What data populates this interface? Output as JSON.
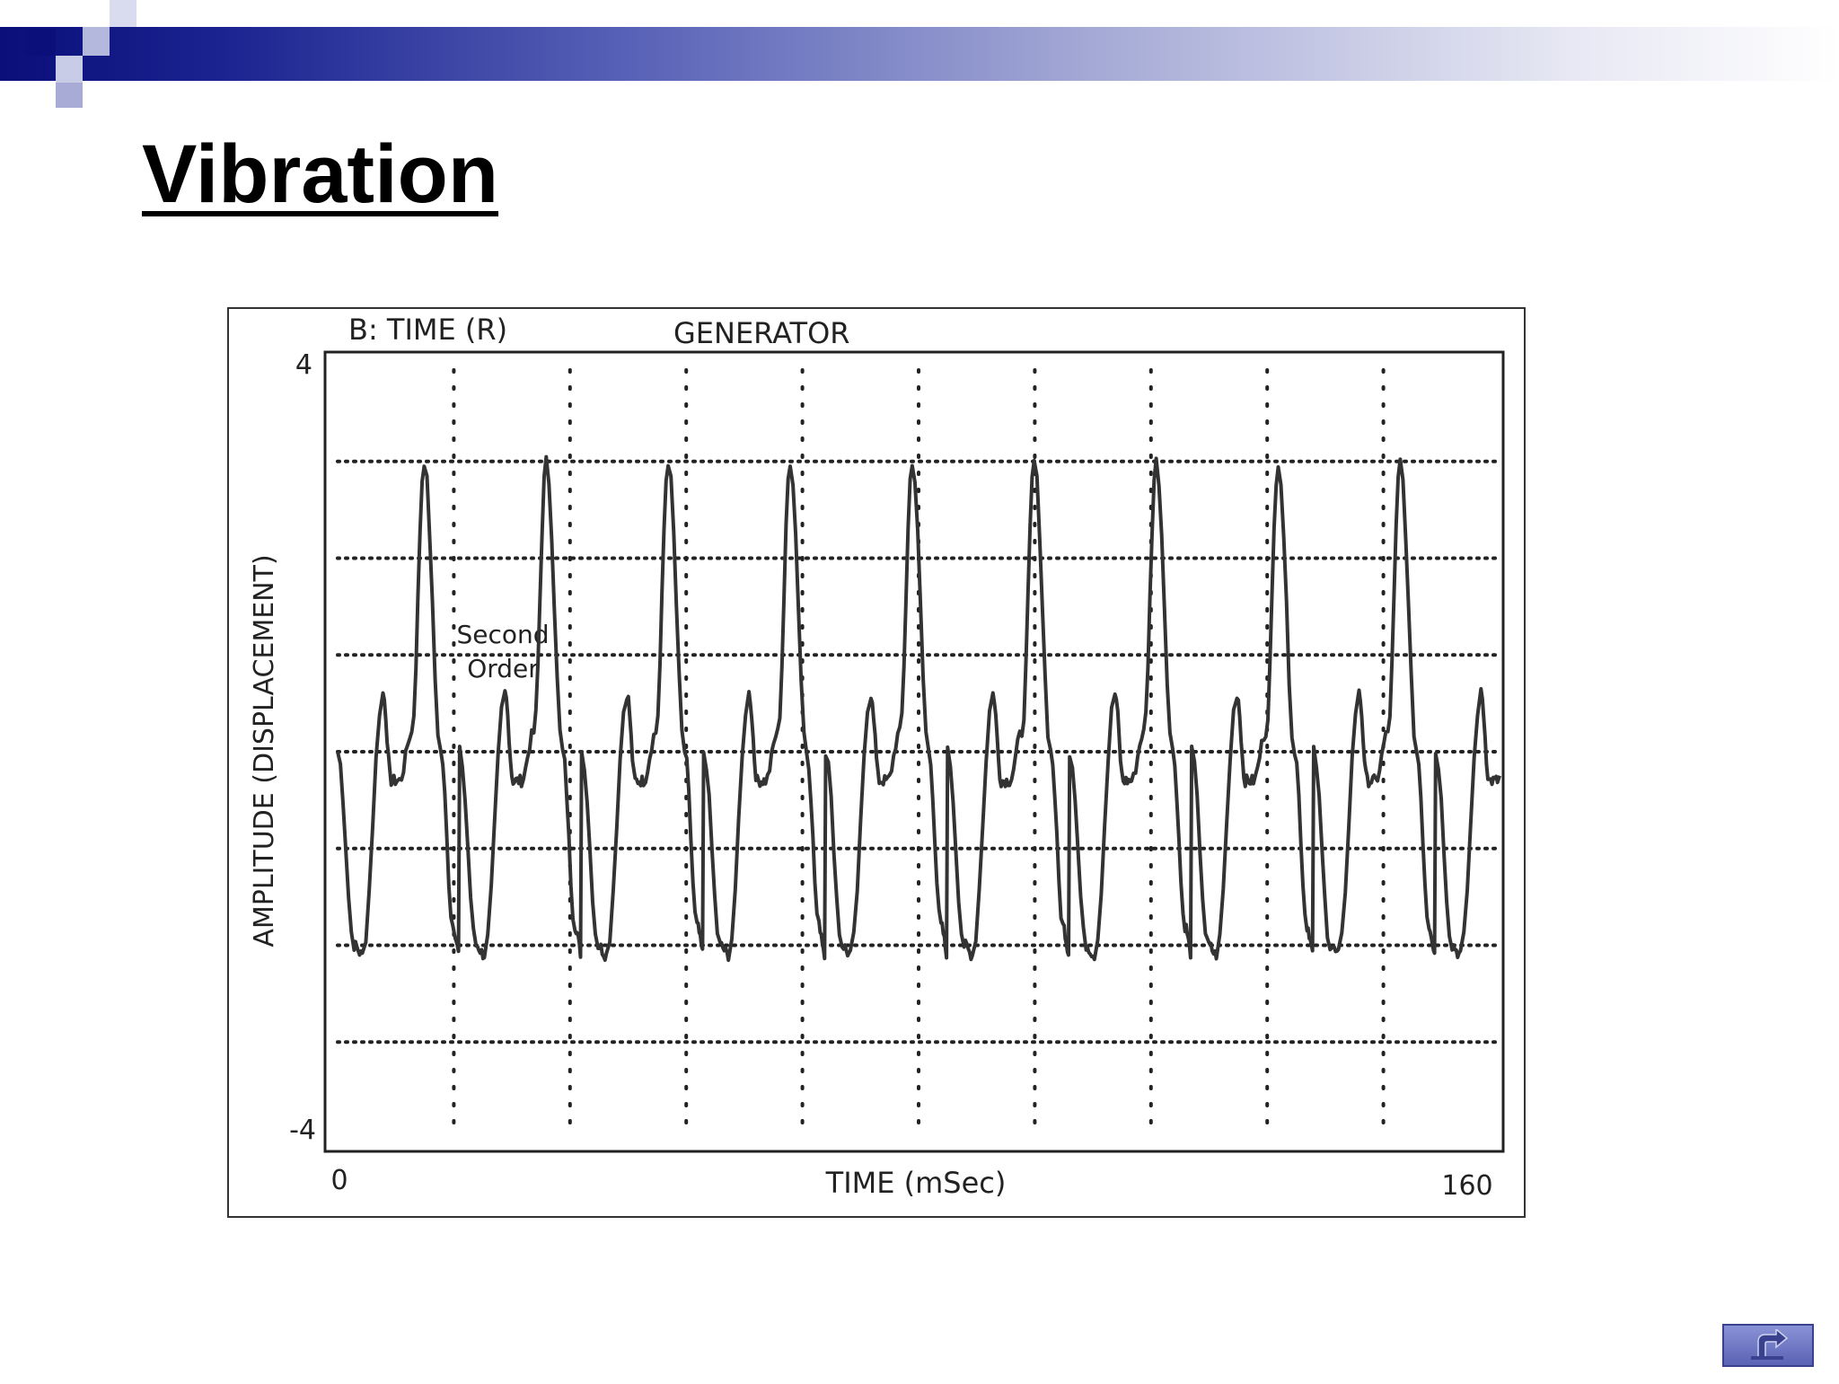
{
  "slide": {
    "title": "Vibration"
  },
  "colors": {
    "header_dark": "#0a0f7a",
    "header_mid": "#5a64b8",
    "trace": "#333333",
    "button": "#6f78c8"
  },
  "icons": {
    "back": "return-arrow-icon"
  },
  "chart_data": {
    "type": "line",
    "header_left": "B:  TIME (R)",
    "header_center": "GENERATOR",
    "xlabel": "TIME (mSec)",
    "ylabel": "AMPLITUDE (DISPLACEMENT)",
    "xlim": [
      0,
      160
    ],
    "ylim": [
      -4,
      4
    ],
    "x_tick_labels": [
      "0",
      "160"
    ],
    "y_tick_labels": [
      "4",
      "-4"
    ],
    "grid": "dotted",
    "annotation": [
      "Second",
      "Order"
    ],
    "series": [
      {
        "period_msec": 16.8,
        "cycles": 9.5,
        "points": [
          [
            0,
            0.0
          ],
          [
            2.0,
            -2.0
          ],
          [
            3.0,
            -2.1
          ],
          [
            5.5,
            0.6
          ],
          [
            6.5,
            -0.3
          ],
          [
            7.5,
            -0.3
          ],
          [
            9.0,
            0.2
          ],
          [
            10.5,
            3.0
          ],
          [
            12.5,
            0.0
          ],
          [
            14.0,
            -1.8
          ],
          [
            14.8,
            -2.1
          ]
        ]
      }
    ]
  }
}
